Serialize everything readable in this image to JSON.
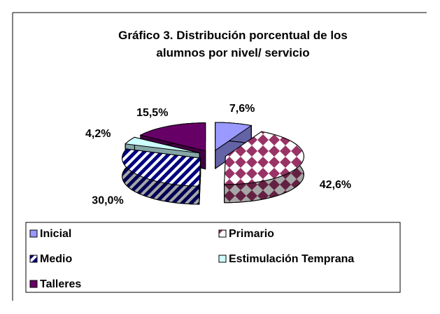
{
  "chart_data": {
    "type": "pie3d",
    "title": "Gráfico 3. Distribución porcentual de los alumnos por nivel/ servicio",
    "categories": [
      "Inicial",
      "Primario",
      "Medio",
      "Estimulación Temprana",
      "Talleres"
    ],
    "values": [
      7.6,
      42.6,
      30.0,
      4.2,
      15.5
    ],
    "value_labels": [
      "7,6%",
      "42,6%",
      "30,0%",
      "4,2%",
      "15,5%"
    ],
    "colors": [
      "#9999ff",
      "#993366",
      "#000080",
      "#ccffff",
      "#660066"
    ],
    "patterns": [
      "solid",
      "diamond",
      "diagonal",
      "solid",
      "solid"
    ],
    "legend": "bottom"
  }
}
